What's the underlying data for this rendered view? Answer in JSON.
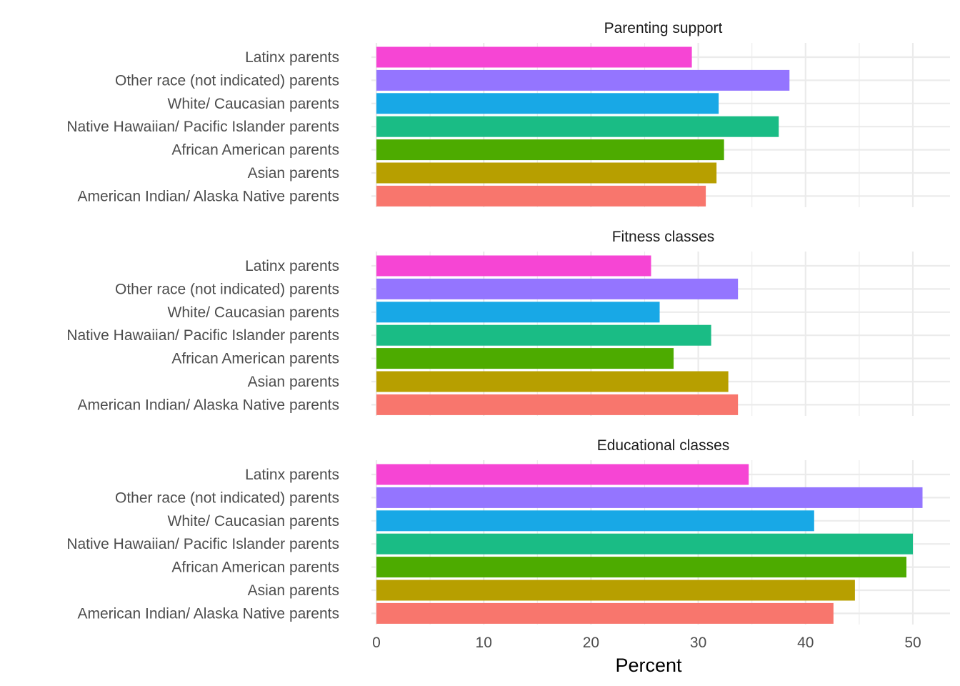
{
  "chart_data": {
    "type": "bar",
    "orientation": "horizontal",
    "xlabel": "Percent",
    "ylabel": "",
    "xlim": [
      0,
      53.5
    ],
    "x_ticks": [
      0,
      10,
      20,
      30,
      40,
      50
    ],
    "grid": true,
    "legend": "none",
    "categories": [
      "American Indian/ Alaska Native parents",
      "Asian parents",
      "African American parents",
      "Native Hawaiian/ Pacific Islander parents",
      "White/ Caucasian parents",
      "Other race (not indicated) parents",
      "Latinx parents"
    ],
    "colors": [
      "#F8766D",
      "#B79F00",
      "#4DAB00",
      "#1ABC85",
      "#18A8E6",
      "#9475FF",
      "#F645D4"
    ],
    "panels": [
      {
        "title": "Parenting support",
        "values": [
          30.7,
          31.7,
          32.4,
          37.5,
          31.9,
          38.5,
          29.4
        ]
      },
      {
        "title": "Fitness classes",
        "values": [
          33.7,
          32.8,
          27.7,
          31.2,
          26.4,
          33.7,
          25.6
        ]
      },
      {
        "title": "Educational classes",
        "values": [
          42.6,
          44.6,
          49.4,
          50.0,
          40.8,
          50.9,
          34.7
        ]
      }
    ]
  }
}
